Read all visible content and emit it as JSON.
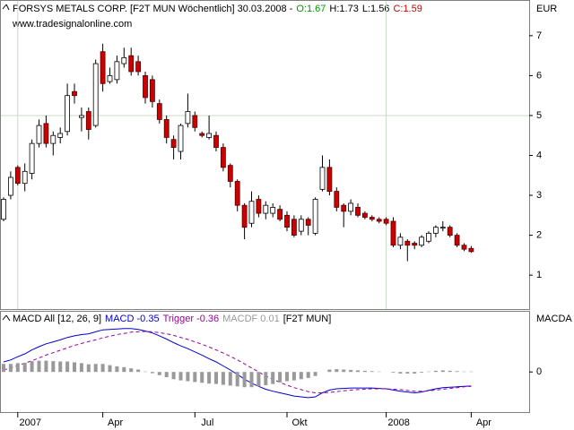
{
  "header": {
    "title": "FORSYS METALS CORP. [F2T MUN  Wöchentlich] 30.03.2008 -",
    "open_label": "O:1.67",
    "high_label": "H:1.73",
    "low_label": "L:1.56",
    "close_label": "C:1.59",
    "subtitle": "www.tradesignalonline.com"
  },
  "chart_data": [
    {
      "type": "candlestick",
      "y_axis_label": "EUR",
      "categories": [
        null,
        null,
        "2007",
        null,
        null,
        null,
        null,
        null,
        null,
        null,
        null,
        null,
        null,
        null,
        "Apr",
        null,
        null,
        null,
        null,
        null,
        null,
        null,
        null,
        null,
        null,
        null,
        null,
        "Jul",
        null,
        null,
        null,
        null,
        null,
        null,
        null,
        null,
        null,
        null,
        null,
        null,
        "Okt",
        null,
        null,
        null,
        null,
        null,
        null,
        null,
        null,
        null,
        null,
        null,
        null,
        null,
        "2008",
        null,
        null,
        null,
        null,
        null,
        null,
        null,
        null,
        null,
        null,
        null,
        "Apr"
      ],
      "open": [
        2.4,
        3.0,
        3.7,
        3.3,
        3.55,
        4.3,
        4.8,
        4.3,
        4.45,
        4.6,
        5.6,
        4.95,
        5.1,
        4.75,
        6.6,
        5.85,
        5.9,
        6.3,
        6.5,
        6.35,
        6.0,
        5.9,
        5.3,
        4.9,
        4.4,
        4.1,
        4.8,
        5.0,
        4.55,
        4.45,
        4.5,
        4.2,
        3.75,
        3.35,
        2.75,
        2.3,
        2.9,
        2.55,
        2.55,
        2.65,
        2.5,
        2.4,
        2.1,
        2.4,
        2.05,
        3.15,
        3.7,
        3.1,
        2.75,
        2.6,
        2.7,
        2.55,
        2.45,
        2.4,
        2.4,
        2.35,
        1.75,
        1.85,
        1.8,
        1.75,
        1.85,
        2.05,
        2.2,
        2.2,
        2.0,
        1.75,
        1.67
      ],
      "high": [
        2.95,
        3.6,
        3.75,
        3.8,
        4.4,
        4.9,
        5.0,
        4.6,
        4.7,
        5.8,
        5.8,
        5.2,
        5.2,
        6.4,
        6.8,
        6.2,
        6.5,
        6.7,
        6.7,
        6.5,
        6.1,
        6.0,
        5.4,
        5.0,
        4.5,
        4.8,
        5.55,
        5.1,
        4.6,
        5.0,
        4.6,
        4.3,
        3.8,
        3.4,
        2.8,
        3.1,
        3.0,
        2.85,
        2.8,
        2.75,
        2.6,
        2.5,
        2.5,
        2.45,
        2.95,
        4.0,
        3.9,
        3.2,
        2.8,
        2.9,
        2.8,
        2.6,
        2.5,
        2.45,
        2.45,
        2.45,
        2.05,
        1.9,
        1.85,
        2.0,
        2.1,
        2.25,
        2.35,
        2.25,
        2.05,
        1.8,
        1.73
      ],
      "low": [
        2.35,
        2.9,
        3.25,
        3.1,
        3.4,
        4.2,
        4.2,
        4.0,
        4.3,
        4.5,
        5.3,
        4.6,
        4.4,
        4.7,
        5.6,
        5.8,
        5.8,
        6.2,
        6.0,
        6.0,
        5.3,
        5.2,
        4.8,
        4.3,
        3.9,
        3.9,
        4.7,
        4.6,
        4.45,
        4.4,
        4.1,
        3.6,
        3.2,
        2.6,
        1.9,
        2.2,
        2.45,
        2.4,
        2.45,
        2.35,
        2.1,
        1.95,
        2.0,
        2.0,
        2.0,
        3.1,
        3.0,
        2.6,
        2.2,
        2.5,
        2.45,
        2.4,
        2.35,
        2.3,
        2.25,
        1.7,
        1.65,
        1.35,
        1.65,
        1.7,
        1.8,
        1.95,
        2.1,
        1.95,
        1.7,
        1.6,
        1.56
      ],
      "close": [
        2.9,
        3.45,
        3.3,
        3.6,
        4.3,
        4.75,
        4.3,
        4.5,
        4.55,
        5.5,
        5.5,
        5.0,
        4.65,
        6.3,
        5.8,
        6.0,
        6.35,
        6.45,
        6.1,
        6.1,
        5.45,
        5.35,
        4.9,
        4.45,
        4.2,
        4.75,
        5.1,
        4.7,
        4.5,
        4.55,
        4.2,
        3.7,
        3.35,
        2.75,
        2.2,
        2.85,
        2.55,
        2.75,
        2.7,
        2.4,
        2.2,
        2.0,
        2.4,
        2.25,
        2.9,
        3.7,
        3.1,
        2.7,
        2.6,
        2.8,
        2.5,
        2.45,
        2.4,
        2.35,
        2.3,
        1.75,
        1.95,
        1.75,
        1.75,
        1.95,
        2.05,
        2.2,
        2.2,
        2.0,
        1.75,
        1.65,
        1.59
      ],
      "up_color": "#ffffff",
      "down_color": "#cc0000",
      "ylim": [
        0.15,
        7.85
      ],
      "yticks": [
        1,
        2,
        3,
        4,
        5,
        6,
        7
      ],
      "grid_y": [
        5
      ],
      "xgrid": [
        "2007",
        "2008"
      ]
    },
    {
      "type": "line",
      "title": "MACD All [12, 26, 9]",
      "suffix": "[F2T MUN]",
      "y_axis_label": "MACDA",
      "ylim": [
        -1.0,
        1.5
      ],
      "yticks": [
        0
      ],
      "series": [
        {
          "name": "MACD -0.35",
          "color": "#0000cc",
          "values": [
            0.25,
            0.3,
            0.38,
            0.45,
            0.55,
            0.63,
            0.7,
            0.75,
            0.8,
            0.86,
            0.9,
            0.93,
            0.95,
            1.0,
            1.05,
            1.06,
            1.07,
            1.08,
            1.08,
            1.06,
            1.02,
            0.97,
            0.9,
            0.82,
            0.73,
            0.65,
            0.58,
            0.5,
            0.42,
            0.33,
            0.25,
            0.15,
            0.05,
            -0.06,
            -0.18,
            -0.28,
            -0.36,
            -0.43,
            -0.48,
            -0.52,
            -0.56,
            -0.6,
            -0.62,
            -0.64,
            -0.62,
            -0.52,
            -0.45,
            -0.42,
            -0.41,
            -0.4,
            -0.4,
            -0.4,
            -0.4,
            -0.41,
            -0.42,
            -0.45,
            -0.48,
            -0.5,
            -0.52,
            -0.5,
            -0.46,
            -0.42,
            -0.39,
            -0.38,
            -0.37,
            -0.36,
            -0.35
          ]
        },
        {
          "name": "Trigger -0.36",
          "color": "#990099",
          "dashed": true,
          "values": [
            0.05,
            0.1,
            0.16,
            0.22,
            0.28,
            0.35,
            0.42,
            0.48,
            0.54,
            0.6,
            0.66,
            0.71,
            0.76,
            0.8,
            0.85,
            0.89,
            0.93,
            0.96,
            0.99,
            1.0,
            1.01,
            1.0,
            0.98,
            0.95,
            0.91,
            0.86,
            0.81,
            0.75,
            0.69,
            0.62,
            0.55,
            0.47,
            0.39,
            0.3,
            0.2,
            0.1,
            0.0,
            -0.1,
            -0.18,
            -0.26,
            -0.33,
            -0.39,
            -0.44,
            -0.49,
            -0.52,
            -0.52,
            -0.51,
            -0.49,
            -0.47,
            -0.45,
            -0.44,
            -0.43,
            -0.42,
            -0.42,
            -0.42,
            -0.43,
            -0.44,
            -0.46,
            -0.48,
            -0.48,
            -0.47,
            -0.45,
            -0.43,
            -0.41,
            -0.39,
            -0.37,
            -0.36
          ]
        },
        {
          "name": "MACDF 0.01",
          "color": "#999999",
          "type": "bar",
          "values": [
            0.2,
            0.2,
            0.22,
            0.23,
            0.27,
            0.28,
            0.28,
            0.27,
            0.26,
            0.26,
            0.24,
            0.22,
            0.19,
            0.2,
            0.2,
            0.17,
            0.14,
            0.12,
            0.09,
            0.06,
            0.01,
            -0.03,
            -0.08,
            -0.13,
            -0.18,
            -0.21,
            -0.23,
            -0.25,
            -0.27,
            -0.29,
            -0.3,
            -0.32,
            -0.34,
            -0.36,
            -0.38,
            -0.38,
            -0.36,
            -0.33,
            -0.3,
            -0.26,
            -0.23,
            -0.21,
            -0.18,
            -0.15,
            -0.1,
            0.0,
            0.06,
            0.07,
            0.06,
            0.05,
            0.04,
            0.03,
            0.02,
            0.01,
            0.0,
            -0.02,
            -0.04,
            -0.04,
            -0.04,
            -0.02,
            0.01,
            0.03,
            0.04,
            0.03,
            0.02,
            0.01,
            0.01
          ]
        }
      ]
    }
  ]
}
